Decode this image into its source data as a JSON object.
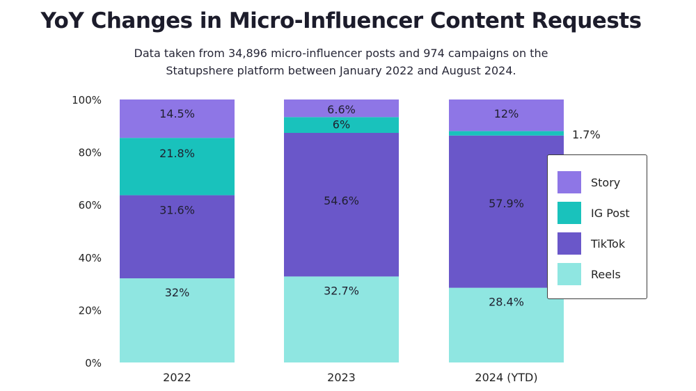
{
  "title": "YoY Changes in Micro-Influencer Content Requests",
  "subtitle": "Data taken from 34,896 micro-influencer posts and 974 campaigns on the Statupshere platform between January 2022 and August 2024.",
  "colors": {
    "Story": "#8e76e6",
    "IG Post": "#19c2bc",
    "TikTok": "#6a57c9",
    "Reels": "#8fe6e1"
  },
  "chart_data": {
    "type": "bar",
    "stacked": true,
    "categories": [
      "2022",
      "2023",
      "2024 (YTD)"
    ],
    "series": [
      {
        "name": "Reels",
        "values": [
          32,
          32.7,
          28.4
        ],
        "labels": [
          "32%",
          "32.7%",
          "28.4%"
        ]
      },
      {
        "name": "TikTok",
        "values": [
          31.6,
          54.6,
          57.9
        ],
        "labels": [
          "31.6%",
          "54.6%",
          "57.9%"
        ]
      },
      {
        "name": "IG Post",
        "values": [
          21.8,
          6,
          1.7
        ],
        "labels": [
          "21.8%",
          "6%",
          "1.7%"
        ]
      },
      {
        "name": "Story",
        "values": [
          14.5,
          6.6,
          12
        ],
        "labels": [
          "14.5%",
          "6.6%",
          "12%"
        ]
      }
    ],
    "yticks": [
      "0%",
      "20%",
      "40%",
      "60%",
      "80%",
      "100%"
    ],
    "ylim": [
      0,
      100
    ],
    "legend": [
      "Story",
      "IG Post",
      "TikTok",
      "Reels"
    ],
    "legend_position": "right"
  }
}
